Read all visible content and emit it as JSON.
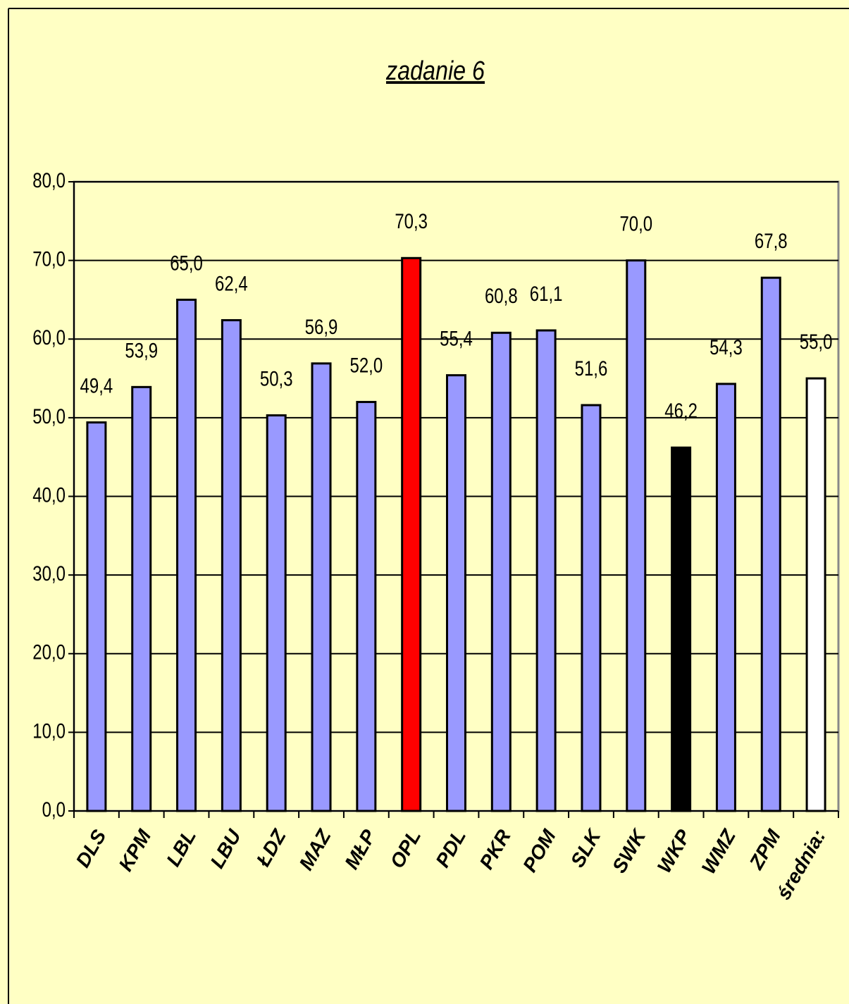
{
  "chart_data": {
    "type": "bar",
    "title": "zadanie 6",
    "categories": [
      "DLS",
      "KPM",
      "LBL",
      "LBU",
      "ŁDZ",
      "MAZ",
      "MŁP",
      "OPL",
      "PDL",
      "PKR",
      "POM",
      "SLK",
      "SWK",
      "WKP",
      "WMZ",
      "ZPM",
      "średnia:"
    ],
    "values": [
      49.4,
      53.9,
      65.0,
      62.4,
      50.3,
      56.9,
      52.0,
      70.3,
      55.4,
      60.8,
      61.1,
      51.6,
      70.0,
      46.2,
      54.3,
      67.8,
      55.0
    ],
    "value_labels": [
      "49,4",
      "53,9",
      "65,0",
      "62,4",
      "50,3",
      "56,9",
      "52,0",
      "70,3",
      "55,4",
      "60,8",
      "61,1",
      "51,6",
      "70,0",
      "46,2",
      "54,3",
      "67,8",
      "55,0"
    ],
    "colors": [
      "#9999ff",
      "#9999ff",
      "#9999ff",
      "#9999ff",
      "#9999ff",
      "#9999ff",
      "#9999ff",
      "#ff0000",
      "#9999ff",
      "#9999ff",
      "#9999ff",
      "#9999ff",
      "#9999ff",
      "#000000",
      "#9999ff",
      "#9999ff",
      "#ffffff"
    ],
    "ylim": [
      0,
      80
    ],
    "yticks": [
      {
        "value": 0,
        "label": "0,0"
      },
      {
        "value": 10,
        "label": "10,0"
      },
      {
        "value": 20,
        "label": "20,0"
      },
      {
        "value": 30,
        "label": "30,0"
      },
      {
        "value": 40,
        "label": "40,0"
      },
      {
        "value": 50,
        "label": "50,0"
      },
      {
        "value": 60,
        "label": "60,0"
      },
      {
        "value": 70,
        "label": "70,0"
      },
      {
        "value": 80,
        "label": "80,0"
      }
    ],
    "grid": true
  }
}
